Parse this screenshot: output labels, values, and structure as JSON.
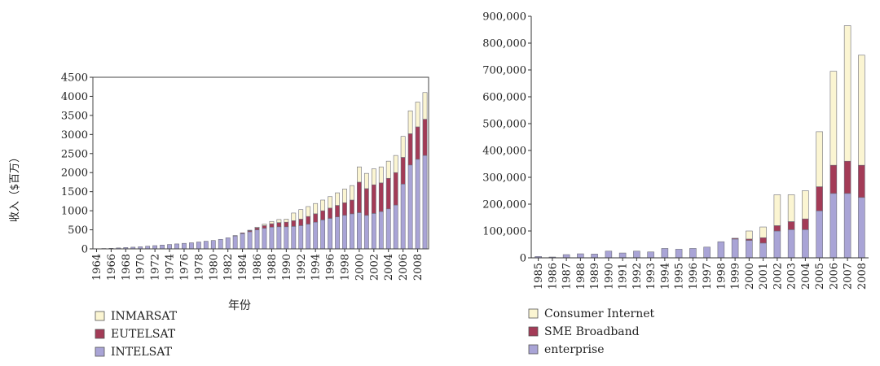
{
  "chart_data": [
    {
      "type": "bar",
      "stacked": true,
      "title": "",
      "xlabel": "年份",
      "ylabel": "收入（$百万）",
      "ylim": [
        0,
        4500
      ],
      "yticks": [
        0,
        500,
        1000,
        1500,
        2000,
        2500,
        3000,
        3500,
        4000,
        4500
      ],
      "ytick_labels": [
        "0",
        "500",
        "1000",
        "1500",
        "2000",
        "2500",
        "3000",
        "3500",
        "4000",
        "4500"
      ],
      "categories": [
        "1964",
        "1965",
        "1966",
        "1967",
        "1968",
        "1969",
        "1970",
        "1971",
        "1972",
        "1973",
        "1974",
        "1975",
        "1976",
        "1977",
        "1978",
        "1979",
        "1980",
        "1981",
        "1982",
        "1983",
        "1984",
        "1985",
        "1986",
        "1987",
        "1988",
        "1989",
        "1990",
        "1991",
        "1992",
        "1993",
        "1994",
        "1995",
        "1996",
        "1997",
        "1998",
        "1999",
        "2000",
        "2001",
        "2002",
        "2003",
        "2004",
        "2005",
        "2006",
        "2007",
        "2008",
        "2009"
      ],
      "tick_labels": [
        "1964",
        "1966",
        "1968",
        "1970",
        "1972",
        "1974",
        "1976",
        "1978",
        "1980",
        "1982",
        "1984",
        "1986",
        "1988",
        "1990",
        "1992",
        "1994",
        "1996",
        "1998",
        "2000",
        "2002",
        "2004",
        "2006",
        "2008"
      ],
      "grid": false,
      "legend_position": "below-left",
      "series": [
        {
          "name": "INTELSAT",
          "color": "#a9a4d6",
          "values": [
            5,
            10,
            15,
            25,
            35,
            45,
            55,
            70,
            85,
            100,
            115,
            130,
            145,
            160,
            180,
            200,
            220,
            250,
            290,
            340,
            400,
            450,
            500,
            540,
            570,
            580,
            580,
            590,
            610,
            650,
            700,
            760,
            800,
            840,
            880,
            920,
            950,
            880,
            930,
            980,
            1050,
            1150,
            1700,
            2200,
            2350,
            2450
          ]
        },
        {
          "name": "EUTELSAT",
          "color": "#a33b57",
          "values": [
            0,
            0,
            0,
            0,
            0,
            0,
            0,
            0,
            0,
            0,
            0,
            0,
            0,
            0,
            0,
            0,
            0,
            0,
            0,
            10,
            20,
            30,
            50,
            70,
            90,
            110,
            120,
            150,
            170,
            200,
            220,
            240,
            270,
            300,
            330,
            360,
            800,
            700,
            750,
            750,
            800,
            850,
            700,
            820,
            850,
            950
          ]
        },
        {
          "name": "INMARSAT",
          "color": "#fbf5d2",
          "values": [
            0,
            0,
            0,
            0,
            0,
            0,
            0,
            0,
            0,
            0,
            0,
            0,
            0,
            0,
            0,
            0,
            0,
            0,
            0,
            0,
            0,
            10,
            20,
            40,
            60,
            80,
            80,
            200,
            250,
            260,
            270,
            280,
            300,
            330,
            360,
            380,
            400,
            400,
            420,
            420,
            450,
            450,
            550,
            600,
            650,
            700
          ]
        }
      ]
    },
    {
      "type": "bar",
      "stacked": true,
      "title": "",
      "xlabel": "",
      "ylabel": "",
      "ylim": [
        0,
        900000
      ],
      "yticks": [
        0,
        100000,
        200000,
        300000,
        400000,
        500000,
        600000,
        700000,
        800000,
        900000
      ],
      "ytick_labels": [
        "0",
        "100,000",
        "200,000",
        "300,000",
        "400,000",
        "500,000",
        "600,000",
        "700,000",
        "800,000",
        "900,000"
      ],
      "categories": [
        "1985",
        "1986",
        "1987",
        "1988",
        "1989",
        "1990",
        "1991",
        "1992",
        "1993",
        "1994",
        "1995",
        "1996",
        "1997",
        "1998",
        "1999",
        "2000",
        "2001",
        "2002",
        "2003",
        "2004",
        "2005",
        "2006",
        "2007",
        "2008"
      ],
      "grid": false,
      "legend_position": "below-left",
      "series": [
        {
          "name": "enterprise",
          "color": "#a9a4d6",
          "values": [
            5000,
            3000,
            12000,
            15000,
            14000,
            25000,
            18000,
            25000,
            22000,
            35000,
            32000,
            35000,
            40000,
            60000,
            70000,
            65000,
            55000,
            100000,
            105000,
            105000,
            175000,
            240000,
            240000,
            225000
          ]
        },
        {
          "name": "SME Broadband",
          "color": "#a33b57",
          "values": [
            0,
            0,
            0,
            0,
            0,
            0,
            0,
            0,
            0,
            0,
            0,
            0,
            0,
            0,
            3000,
            5000,
            20000,
            20000,
            30000,
            40000,
            90000,
            105000,
            120000,
            120000
          ]
        },
        {
          "name": "Consumer Internet",
          "color": "#fbf5d2",
          "values": [
            0,
            0,
            0,
            0,
            0,
            0,
            0,
            0,
            0,
            0,
            0,
            0,
            0,
            0,
            0,
            30000,
            40000,
            115000,
            100000,
            105000,
            205000,
            350000,
            505000,
            410000
          ]
        }
      ]
    }
  ]
}
